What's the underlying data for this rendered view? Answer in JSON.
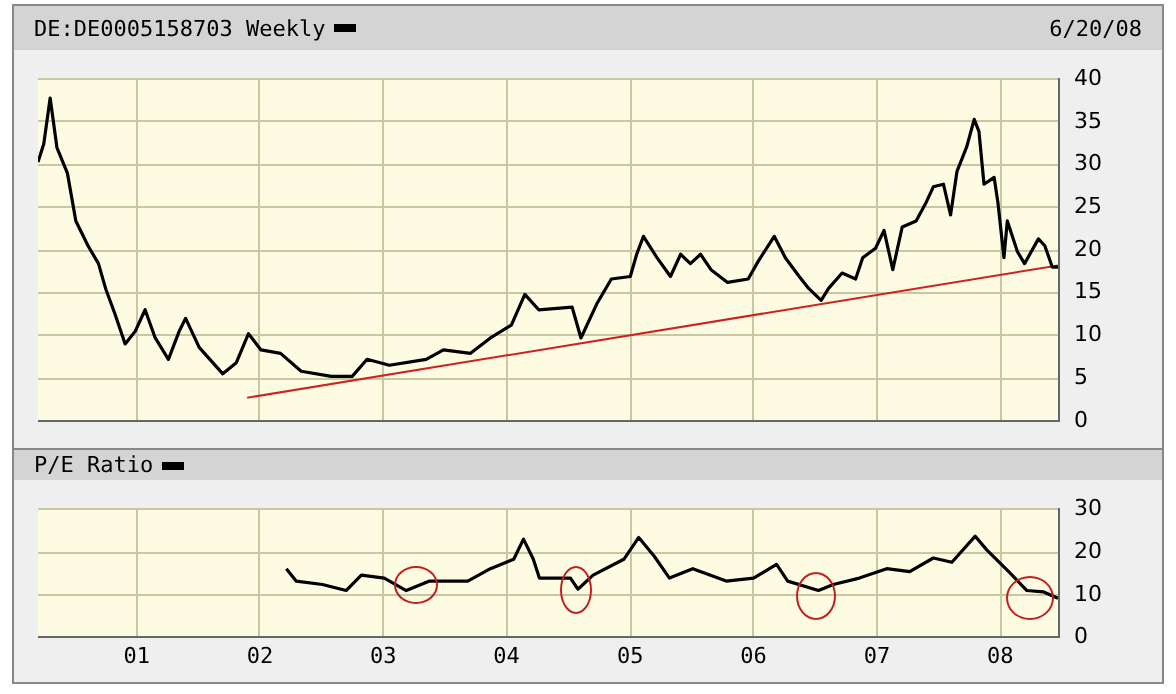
{
  "chart_data": [
    {
      "type": "line",
      "legend": "top left",
      "grid": true,
      "tick_labels": "y",
      "marker": "none",
      "line_style": "solid",
      "annotations": [
        "6/20/08"
      ],
      "xlim": [
        "2000-03-15",
        "2008-06-20"
      ],
      "xticks": [
        {
          "value": "2001-01-01",
          "label": null
        },
        {
          "value": "2002-01-01",
          "label": null
        },
        {
          "value": "2003-01-01",
          "label": null
        },
        {
          "value": "2004-01-01",
          "label": null
        },
        {
          "value": "2005-01-01",
          "label": null
        },
        {
          "value": "2006-01-01",
          "label": null
        },
        {
          "value": "2007-01-01",
          "label": null
        },
        {
          "value": "2008-01-01",
          "label": null
        }
      ],
      "ylim": [
        0,
        40
      ],
      "yticks": [
        0,
        5,
        10,
        15,
        20,
        25,
        30,
        35,
        40
      ],
      "series": [
        {
          "name": "DE:DE0005158703 Weekly",
          "color": "#000000",
          "x": [
            "2000-03-15",
            "2000-04-01",
            "2000-04-20",
            "2000-05-10",
            "2000-06-10",
            "2000-07-05",
            "2000-08-10",
            "2000-09-10",
            "2000-10-01",
            "2000-10-28",
            "2000-11-28",
            "2000-12-28",
            "2001-01-26",
            "2001-02-25",
            "2001-04-05",
            "2001-05-07",
            "2001-05-26",
            "2001-07-05",
            "2001-09-13",
            "2001-10-23",
            "2001-11-28",
            "2002-01-04",
            "2002-03-03",
            "2002-05-03",
            "2002-07-31",
            "2002-10-01",
            "2002-11-14",
            "2003-01-19",
            "2003-05-08",
            "2003-06-28",
            "2003-09-16",
            "2003-11-14",
            "2004-01-15",
            "2004-02-24",
            "2004-04-05",
            "2004-07-13",
            "2004-08-08",
            "2004-09-24",
            "2004-11-06",
            "2005-01-01",
            "2005-01-20",
            "2005-02-09",
            "2005-03-21",
            "2005-04-30",
            "2005-05-30",
            "2005-06-28",
            "2005-07-28",
            "2005-08-28",
            "2005-10-16",
            "2005-12-16",
            "2006-01-15",
            "2006-03-03",
            "2006-04-05",
            "2006-05-16",
            "2006-06-13",
            "2006-07-20",
            "2006-08-11",
            "2006-09-20",
            "2006-10-30",
            "2006-11-20",
            "2006-12-28",
            "2007-01-22",
            "2007-02-17",
            "2007-03-17",
            "2007-04-27",
            "2007-05-27",
            "2007-06-17",
            "2007-07-17",
            "2007-08-07",
            "2007-08-26",
            "2007-09-24",
            "2007-10-16",
            "2007-10-30",
            "2007-11-14",
            "2007-12-14",
            "2007-12-25",
            "2008-01-12",
            "2008-01-22",
            "2008-02-21",
            "2008-03-13",
            "2008-04-23",
            "2008-05-12",
            "2008-06-03",
            "2008-06-20"
          ],
          "values": [
            30.3,
            32.4,
            37.8,
            32,
            29,
            23.4,
            20.5,
            18.4,
            15.5,
            12.6,
            9,
            10.5,
            13,
            9.7,
            7.2,
            10.5,
            12,
            8.6,
            5.5,
            6.8,
            10.2,
            8.3,
            7.9,
            5.8,
            5.2,
            5.2,
            7.2,
            6.5,
            7.2,
            8.3,
            7.9,
            9.7,
            11.2,
            14.8,
            13,
            13.3,
            9.7,
            13.7,
            16.6,
            16.9,
            19.5,
            21.6,
            19.1,
            16.9,
            19.5,
            18.4,
            19.5,
            17.7,
            16.2,
            16.6,
            18.7,
            21.6,
            19.1,
            16.9,
            15.5,
            14.1,
            15.5,
            17.3,
            16.6,
            19.1,
            20.2,
            22.3,
            17.7,
            22.7,
            23.4,
            25.6,
            27.4,
            27.7,
            24.1,
            29.2,
            32.1,
            35.3,
            33.9,
            27.7,
            28.5,
            25.6,
            19.1,
            23.4,
            19.8,
            18.4,
            21.3,
            20.5,
            18,
            18
          ]
        },
        {
          "type": "line",
          "color": "#cc2222",
          "x": [
            "2001-11-24",
            "2008-06-20"
          ],
          "values": [
            2.7,
            18.2
          ]
        }
      ]
    },
    {
      "type": "line",
      "legend": "top left",
      "grid": true,
      "marker": "none",
      "line_style": "solid",
      "xlim": [
        "2000-03-15",
        "2008-06-20"
      ],
      "xticks": [
        {
          "value": "2001-01-01",
          "label": "01"
        },
        {
          "value": "2002-01-01",
          "label": "02"
        },
        {
          "value": "2003-01-01",
          "label": "03"
        },
        {
          "value": "2004-01-01",
          "label": "04"
        },
        {
          "value": "2005-01-01",
          "label": "05"
        },
        {
          "value": "2006-01-01",
          "label": "06"
        },
        {
          "value": "2007-01-01",
          "label": "07"
        },
        {
          "value": "2008-01-01",
          "label": "08"
        }
      ],
      "ylim": [
        0,
        30
      ],
      "yticks": [
        0,
        10,
        20,
        30
      ],
      "series": [
        {
          "name": "P/E Ratio",
          "color": "#000000",
          "x": [
            "2002-03-20",
            "2002-04-18",
            "2002-07-05",
            "2002-09-13",
            "2002-10-28",
            "2003-01-04",
            "2003-03-10",
            "2003-05-18",
            "2003-09-08",
            "2003-11-14",
            "2004-01-22",
            "2004-02-20",
            "2004-03-20",
            "2004-04-07",
            "2004-07-08",
            "2004-07-30",
            "2004-09-13",
            "2004-12-13",
            "2005-01-26",
            "2005-03-13",
            "2005-04-27",
            "2005-07-05",
            "2005-10-12",
            "2006-01-01",
            "2006-03-10",
            "2006-04-12",
            "2006-07-12",
            "2006-08-25",
            "2006-11-10",
            "2007-01-30",
            "2007-04-08",
            "2007-06-17",
            "2007-08-11",
            "2007-10-19",
            "2007-11-22",
            "2008-01-26",
            "2008-03-20",
            "2008-05-07",
            "2008-06-20"
          ],
          "values": [
            16.1,
            13.2,
            12.4,
            11,
            14.6,
            13.9,
            11,
            13.2,
            13.2,
            16.1,
            18.3,
            23,
            18.3,
            13.9,
            13.9,
            11.3,
            14.6,
            18.3,
            23.4,
            19,
            13.9,
            16.1,
            13.2,
            13.9,
            17.1,
            13.2,
            11,
            12.4,
            13.9,
            16.1,
            15.4,
            18.6,
            17.6,
            23.7,
            20.5,
            15.4,
            11,
            10.7,
            9.2
          ]
        }
      ]
    }
  ]
}
